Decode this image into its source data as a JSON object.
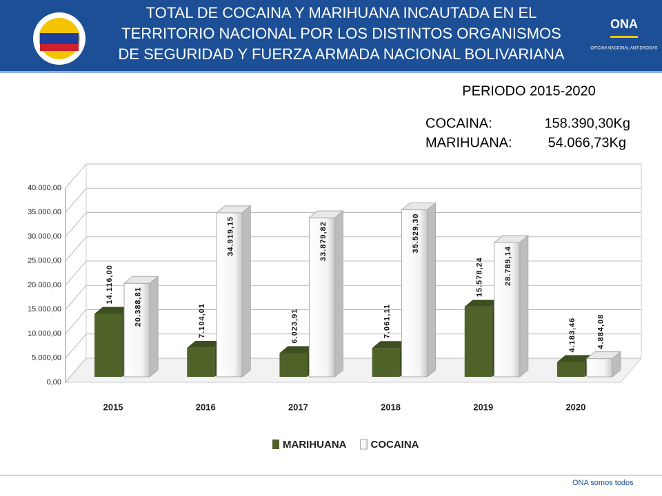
{
  "header": {
    "title_lines": [
      "TOTAL DE COCAINA Y MARIHUANA INCAUTADA EN EL",
      "TERRITORIO NACIONAL POR LOS DISTINTOS ORGANISMOS",
      "DE SEGURIDAD Y FUERZA ARMADA NACIONAL BOLIVARIANA"
    ],
    "logo_text": "ONA",
    "logo_subtext": "OFICINA NACIONAL ANTIDROGAS"
  },
  "period": "PERIODO 2015-2020",
  "totals": [
    {
      "label": "COCAINA:",
      "value": "158.390,30Kg"
    },
    {
      "label": "MARIHUANA:",
      "value": "54.066,73Kg"
    }
  ],
  "footer": "ONA somos todos",
  "chart_data": {
    "type": "bar3d",
    "categories": [
      "2015",
      "2016",
      "2017",
      "2018",
      "2019",
      "2020"
    ],
    "series": [
      {
        "name": "MARIHUANA",
        "color": "#4f6228",
        "values": [
          14116.0,
          7104.01,
          6023.91,
          7061.11,
          15578.24,
          4183.46
        ],
        "value_labels": [
          "14.116,00",
          "7.104,01",
          "6.023,91",
          "7.061,11",
          "15.578,24",
          "4.183,46"
        ]
      },
      {
        "name": "COCAINA",
        "color": "#ffffff",
        "values": [
          20388.81,
          34919.15,
          33879.82,
          35529.3,
          28789.14,
          4884.08
        ],
        "value_labels": [
          "20.388,81",
          "34.919,15",
          "33.879,82",
          "35.529,30",
          "28.789,14",
          "4.884,08"
        ]
      }
    ],
    "ylim": [
      0,
      40000
    ],
    "yticks": [
      {
        "value": 0,
        "label": "0,00"
      },
      {
        "value": 5000,
        "label": "5.000,00"
      },
      {
        "value": 10000,
        "label": "10.000,00"
      },
      {
        "value": 15000,
        "label": "15.000,00"
      },
      {
        "value": 20000,
        "label": "20.000,00"
      },
      {
        "value": 25000,
        "label": "25.000,00"
      },
      {
        "value": 30000,
        "label": "30.000,00"
      },
      {
        "value": 35000,
        "label": "35.000,00"
      },
      {
        "value": 40000,
        "label": "40.000,00"
      }
    ],
    "grid": true,
    "legend": "bottom"
  }
}
